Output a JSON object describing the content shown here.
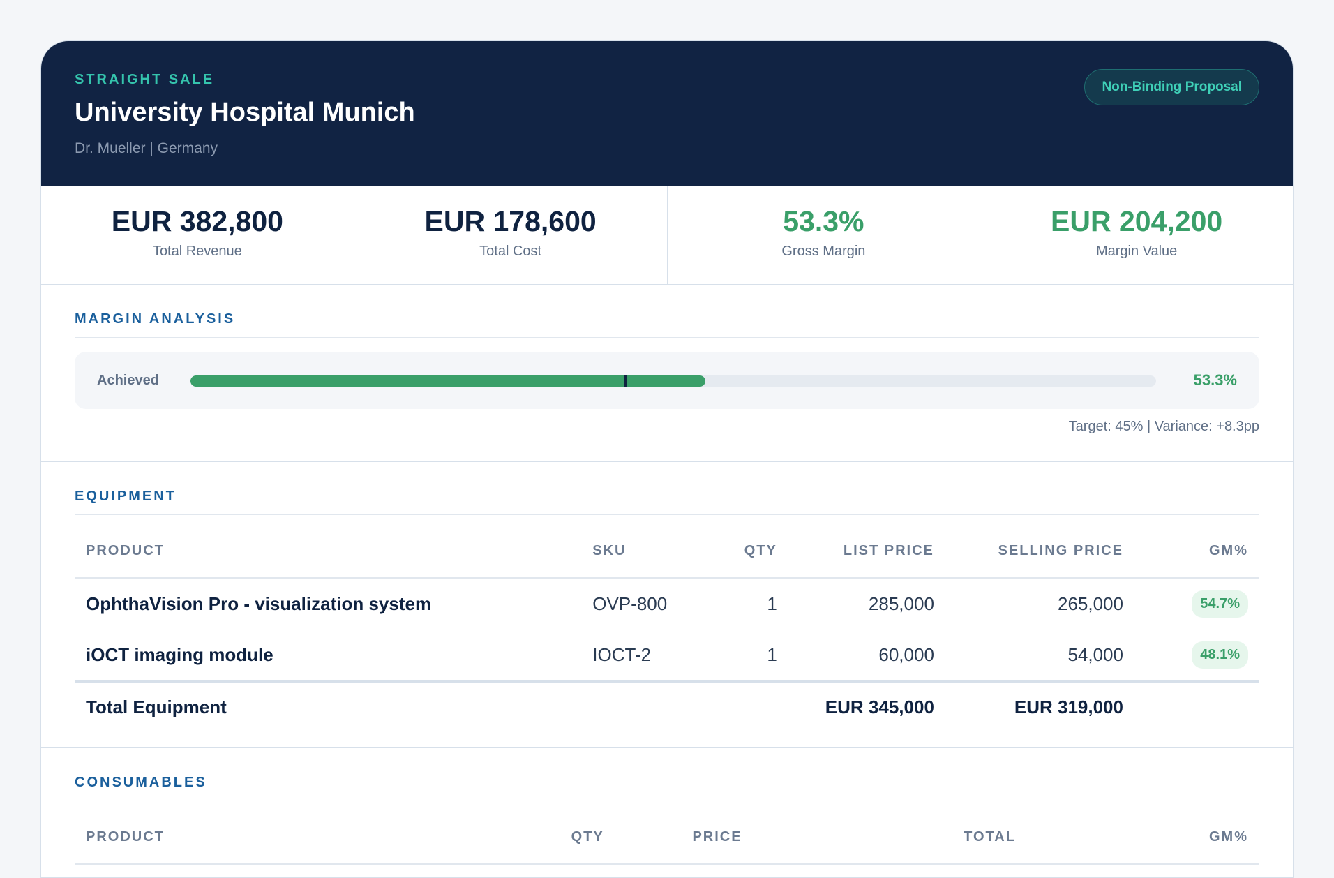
{
  "header": {
    "eyebrow": "STRAIGHT SALE",
    "client": "University Hospital Munich",
    "contact": "Dr. Mueller | Germany",
    "badge": "Non-Binding Proposal"
  },
  "kpis": [
    {
      "value": "EUR 382,800",
      "label": "Total Revenue"
    },
    {
      "value": "EUR 178,600",
      "label": "Total Cost"
    },
    {
      "value": "53.3%",
      "label": "Gross Margin"
    },
    {
      "value": "EUR 204,200",
      "label": "Margin Value"
    }
  ],
  "margin": {
    "title": "MARGIN ANALYSIS",
    "label": "Achieved",
    "achieved_value": 53.3,
    "target_value": 45,
    "achieved_text": "53.3%",
    "target_text": "Target: 45% | Variance: +8.3pp"
  },
  "equipment": {
    "title": "EQUIPMENT",
    "columns": [
      "PRODUCT",
      "SKU",
      "QTY",
      "LIST PRICE",
      "SELLING PRICE",
      "GM%"
    ],
    "rows": [
      {
        "product": "OphthaVision Pro - visualization system",
        "sku": "OVP-800",
        "qty": "1",
        "list": "285,000",
        "sell": "265,000",
        "gm": "54.7%"
      },
      {
        "product": "iOCT imaging module",
        "sku": "IOCT-2",
        "qty": "1",
        "list": "60,000",
        "sell": "54,000",
        "gm": "48.1%"
      }
    ],
    "total": {
      "label": "Total Equipment",
      "list": "EUR 345,000",
      "sell": "EUR 319,000"
    }
  },
  "consumables": {
    "title": "CONSUMABLES",
    "columns": [
      "PRODUCT",
      "QTY",
      "PRICE",
      "TOTAL",
      "GM%"
    ]
  },
  "colors": {
    "header_bg": "#112343",
    "accent_teal": "#35c4ad",
    "positive_green": "#3a9f69",
    "section_blue": "#1a5f9c"
  }
}
